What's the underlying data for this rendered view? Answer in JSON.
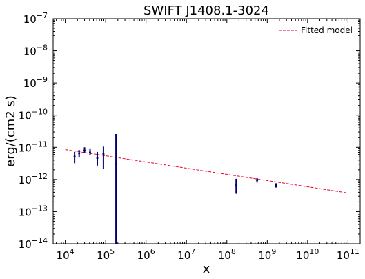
{
  "chart_data": {
    "type": "scatter",
    "title": "SWIFT J1408.1-3024",
    "xlabel": "x",
    "ylabel": "erg/(cm2 s)",
    "xscale": "log",
    "yscale": "log",
    "xlim": [
      5000,
      200000000000
    ],
    "ylim": [
      1e-14,
      1e-07
    ],
    "grid": false,
    "legend_position": "top-right",
    "legend_label": "Fitted model",
    "colors": {
      "points": "#00006e",
      "model": "#e8002e"
    },
    "x_ticks": [
      {
        "value": 10000,
        "base": "10",
        "exp": "4"
      },
      {
        "value": 100000,
        "base": "10",
        "exp": "5"
      },
      {
        "value": 1000000,
        "base": "10",
        "exp": "6"
      },
      {
        "value": 10000000,
        "base": "10",
        "exp": "7"
      },
      {
        "value": 100000000,
        "base": "10",
        "exp": "8"
      },
      {
        "value": 1000000000,
        "base": "10",
        "exp": "9"
      },
      {
        "value": 10000000000,
        "base": "10",
        "exp": "10"
      },
      {
        "value": 100000000000,
        "base": "10",
        "exp": "11"
      }
    ],
    "y_ticks": [
      {
        "value": 1e-14,
        "base": "10",
        "exp": "−14"
      },
      {
        "value": 1e-13,
        "base": "10",
        "exp": "−13"
      },
      {
        "value": 1e-12,
        "base": "10",
        "exp": "−12"
      },
      {
        "value": 1e-11,
        "base": "10",
        "exp": "−11"
      },
      {
        "value": 1e-10,
        "base": "10",
        "exp": "−10"
      },
      {
        "value": 1e-09,
        "base": "10",
        "exp": "−9"
      },
      {
        "value": 1e-08,
        "base": "10",
        "exp": "−8"
      },
      {
        "value": 1e-07,
        "base": "10",
        "exp": "−7"
      }
    ],
    "series": [
      {
        "name": "",
        "points": [
          {
            "x": 17000,
            "y": 5.2e-12,
            "ylo": 3.2e-12,
            "yhi": 7.2e-12
          },
          {
            "x": 22000,
            "y": 6.5e-12,
            "ylo": 4.8e-12,
            "yhi": 8.3e-12
          },
          {
            "x": 30000,
            "y": 8e-12,
            "ylo": 6.5e-12,
            "yhi": 1e-11
          },
          {
            "x": 41000,
            "y": 7e-12,
            "ylo": 5.6e-12,
            "yhi": 8.8e-12
          },
          {
            "x": 62000,
            "y": 4.6e-12,
            "ylo": 2.7e-12,
            "yhi": 7.2e-12
          },
          {
            "x": 88000,
            "y": 6.2e-12,
            "ylo": 2.1e-12,
            "yhi": 1.05e-11
          },
          {
            "x": 180000,
            "y": 3e-12,
            "ylo": 1e-14,
            "yhi": 2.6e-11
          },
          {
            "x": 170000000,
            "y": 6.5e-13,
            "ylo": 3.6e-13,
            "yhi": 1.05e-12
          },
          {
            "x": 560000000,
            "y": 9.5e-13,
            "ylo": 8e-13,
            "yhi": 1.1e-12
          },
          {
            "x": 1650000000,
            "y": 6.6e-13,
            "ylo": 5.6e-13,
            "yhi": 7.6e-13
          }
        ]
      }
    ],
    "model": {
      "name": "Fitted model",
      "x": [
        10000,
        100000000000
      ],
      "y": [
        8.5e-12,
        3.8e-13
      ]
    }
  }
}
